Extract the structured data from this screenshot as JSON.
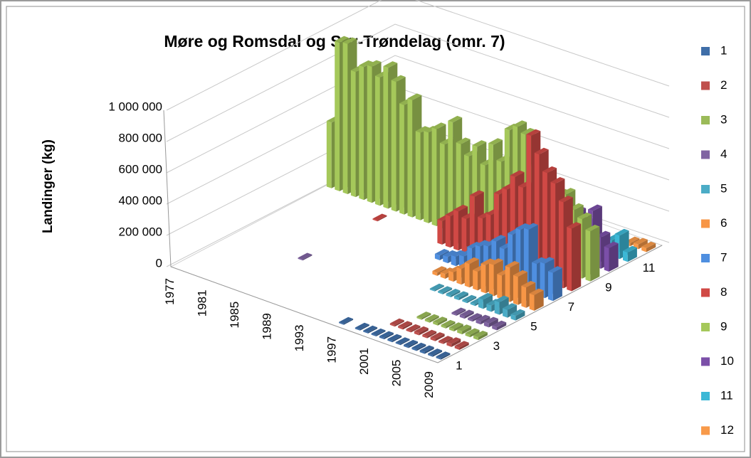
{
  "chart_data": {
    "type": "bar3d",
    "title": "Møre og Romsdal og Sør-Trøndelag (omr. 7)",
    "y_label": "Landinger (kg)",
    "categories": [
      "1977",
      null,
      null,
      null,
      "1981",
      null,
      null,
      null,
      "1985",
      null,
      null,
      null,
      "1989",
      null,
      null,
      null,
      "1993",
      null,
      null,
      null,
      "1997",
      null,
      null,
      null,
      "2001",
      null,
      null,
      null,
      "2005",
      null,
      null,
      null,
      "2009"
    ],
    "ylim": [
      0,
      1000000
    ],
    "yticks": [
      0,
      {
        "value": 200000,
        "label": "200 000"
      },
      {
        "value": 400000,
        "label": "400 000"
      },
      {
        "value": 600000,
        "label": "600 000"
      },
      {
        "value": 800000,
        "label": "800 000"
      },
      {
        "value": 1000000,
        "label": "1 000 000"
      }
    ],
    "grid": true,
    "legend": "right",
    "series": [
      {
        "name": "1",
        "color": "#3f6ea8",
        "values": [
          null,
          null,
          null,
          null,
          null,
          null,
          null,
          null,
          null,
          null,
          null,
          null,
          null,
          null,
          null,
          null,
          null,
          null,
          null,
          null,
          5000,
          null,
          8000,
          8000,
          8000,
          10000,
          10000,
          8000,
          10000,
          10000,
          12000,
          10000,
          10000
        ]
      },
      {
        "name": "2",
        "color": "#c0504d",
        "values": [
          null,
          null,
          null,
          null,
          null,
          null,
          null,
          null,
          null,
          null,
          null,
          null,
          null,
          null,
          null,
          null,
          null,
          null,
          null,
          null,
          null,
          null,
          null,
          null,
          10000,
          12000,
          10000,
          15000,
          12000,
          15000,
          10000,
          20000,
          15000
        ]
      },
      {
        "name": "3",
        "color": "#9bbb59",
        "values": [
          null,
          null,
          null,
          null,
          null,
          null,
          null,
          null,
          null,
          null,
          null,
          null,
          null,
          null,
          null,
          null,
          null,
          null,
          null,
          null,
          null,
          null,
          null,
          null,
          null,
          10000,
          12000,
          15000,
          12000,
          15000,
          20000,
          15000,
          18000
        ]
      },
      {
        "name": "4",
        "color": "#8064a2",
        "values": [
          null,
          null,
          null,
          null,
          null,
          null,
          null,
          null,
          5000,
          null,
          null,
          null,
          null,
          null,
          null,
          null,
          null,
          null,
          null,
          null,
          null,
          null,
          null,
          null,
          null,
          null,
          null,
          10000,
          15000,
          12000,
          20000,
          25000,
          20000
        ]
      },
      {
        "name": "5",
        "color": "#4bacc6",
        "values": [
          null,
          null,
          null,
          null,
          null,
          null,
          null,
          null,
          null,
          null,
          null,
          null,
          null,
          null,
          null,
          null,
          null,
          null,
          null,
          null,
          null,
          null,
          8000,
          10000,
          12000,
          15000,
          10000,
          12000,
          60000,
          40000,
          80000,
          50000,
          30000
        ]
      },
      {
        "name": "6",
        "color": "#f79646",
        "values": [
          null,
          null,
          null,
          null,
          null,
          null,
          null,
          null,
          null,
          null,
          null,
          null,
          null,
          null,
          null,
          null,
          null,
          null,
          null,
          null,
          20000,
          30000,
          60000,
          100000,
          150000,
          120000,
          180000,
          200000,
          150000,
          220000,
          180000,
          130000,
          100000
        ]
      },
      {
        "name": "7",
        "color": "#4f8fe0",
        "values": [
          null,
          null,
          null,
          null,
          null,
          null,
          null,
          null,
          null,
          null,
          null,
          null,
          null,
          null,
          null,
          null,
          null,
          null,
          30000,
          40000,
          60000,
          80000,
          150000,
          180000,
          200000,
          250000,
          220000,
          330000,
          380000,
          400000,
          200000,
          220000,
          180000
        ]
      },
      {
        "name": "8",
        "color": "#d04945",
        "values": [
          null,
          null,
          null,
          null,
          null,
          null,
          null,
          null,
          5000,
          null,
          null,
          null,
          null,
          null,
          null,
          null,
          150000,
          200000,
          250000,
          220000,
          380000,
          260000,
          300000,
          450000,
          500000,
          600000,
          550000,
          900000,
          800000,
          700000,
          650000,
          550000,
          400000
        ]
      },
      {
        "name": "9",
        "color": "#a5c85a",
        "values": [
          420000,
          950000,
          960000,
          800000,
          850000,
          870000,
          820000,
          900000,
          830000,
          700000,
          750000,
          560000,
          580000,
          620000,
          540000,
          700000,
          580000,
          520000,
          600000,
          500000,
          650000,
          560000,
          780000,
          820000,
          790000,
          600000,
          560000,
          500000,
          480000,
          500000,
          420000,
          380000,
          320000
        ]
      },
      {
        "name": "10",
        "color": "#7b4fa8",
        "values": [
          null,
          null,
          null,
          null,
          5000,
          null,
          null,
          null,
          5000,
          null,
          null,
          null,
          null,
          null,
          null,
          null,
          null,
          null,
          null,
          null,
          null,
          null,
          null,
          null,
          null,
          null,
          null,
          null,
          300000,
          250000,
          350000,
          200000,
          150000
        ]
      },
      {
        "name": "11",
        "color": "#3cb8d6",
        "values": [
          null,
          null,
          null,
          null,
          null,
          null,
          null,
          null,
          5000,
          null,
          null,
          null,
          null,
          null,
          null,
          null,
          null,
          null,
          null,
          null,
          null,
          null,
          null,
          null,
          null,
          null,
          null,
          null,
          null,
          null,
          100000,
          150000,
          60000
        ]
      },
      {
        "name": "12",
        "color": "#f89a4a",
        "values": [
          null,
          null,
          null,
          null,
          null,
          null,
          null,
          null,
          5000,
          null,
          null,
          null,
          null,
          null,
          null,
          null,
          null,
          null,
          null,
          null,
          null,
          null,
          null,
          null,
          null,
          null,
          null,
          null,
          null,
          null,
          20000,
          30000,
          25000
        ]
      }
    ]
  }
}
